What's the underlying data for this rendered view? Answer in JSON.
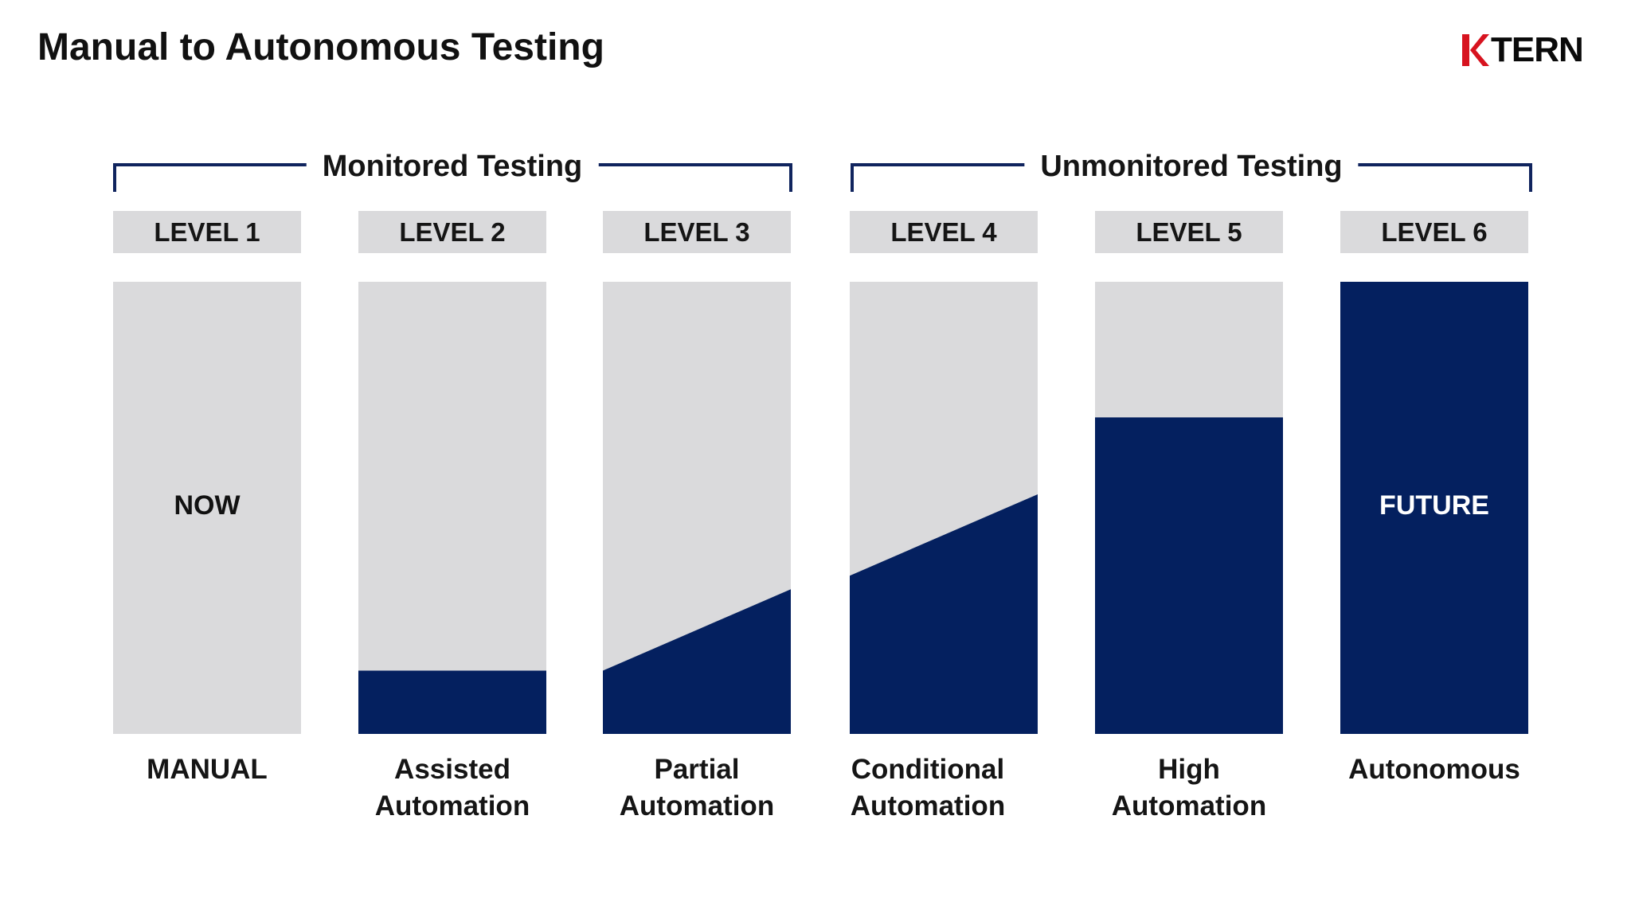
{
  "title": "Manual to Autonomous Testing",
  "logo": {
    "text": "TERN",
    "mark_color": "#d7131f"
  },
  "colors": {
    "navy": "#04205f",
    "gray": "#dadadc",
    "bracket": "#10245e"
  },
  "groups": [
    {
      "label": "Monitored Testing",
      "levels": [
        1,
        2,
        3
      ]
    },
    {
      "label": "Unmonitored Testing",
      "levels": [
        4,
        5,
        6
      ]
    }
  ],
  "levels": [
    {
      "tab": "LEVEL 1",
      "caption_line1": "MANUAL",
      "caption_line2": "",
      "center_label": "NOW",
      "automation_start": 0,
      "automation_end": 0
    },
    {
      "tab": "LEVEL 2",
      "caption_line1": "Assisted",
      "caption_line2": "Automation",
      "center_label": "",
      "automation_start": 0.14,
      "automation_end": 0.14
    },
    {
      "tab": "LEVEL 3",
      "caption_line1": "Partial",
      "caption_line2": "Automation",
      "center_label": "",
      "automation_start": 0.14,
      "automation_end": 0.32
    },
    {
      "tab": "LEVEL 4",
      "caption_line1": "Conditional",
      "caption_line2": "Automation",
      "center_label": "",
      "automation_start": 0.35,
      "automation_end": 0.53
    },
    {
      "tab": "LEVEL 5",
      "caption_line1": "High",
      "caption_line2": "Automation",
      "center_label": "",
      "automation_start": 0.7,
      "automation_end": 0.7
    },
    {
      "tab": "LEVEL 6",
      "caption_line1": "Autonomous",
      "caption_line2": "",
      "center_label": "FUTURE",
      "automation_start": 1,
      "automation_end": 1
    }
  ]
}
